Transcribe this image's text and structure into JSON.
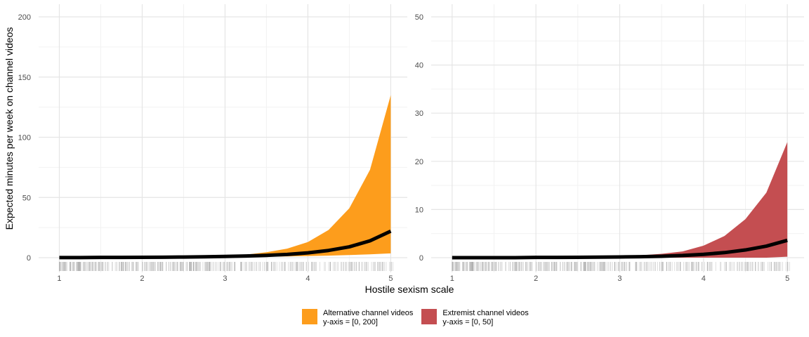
{
  "ylabel": "Expected minutes per week on channel videos",
  "xlabel": "Hostile sexism scale",
  "legend": [
    {
      "line1": "Alternative channel videos",
      "line2": "y-axis = [0, 200]",
      "color": "#FD9D1C"
    },
    {
      "line1": "Extremist channel videos",
      "line2": "y-axis = [0, 50]",
      "color": "#C44E51"
    }
  ],
  "chart_data": [
    {
      "type": "area",
      "xlabel": "Hostile sexism scale",
      "ylabel": "Expected minutes per week on channel videos",
      "xlim": [
        0.75,
        5.2
      ],
      "ylim": [
        0,
        200
      ],
      "x_ticks": [
        1,
        2,
        3,
        4,
        5
      ],
      "y_ticks": [
        0,
        50,
        100,
        150,
        200
      ],
      "grid": true,
      "band_color": "#FD9D1C",
      "x": [
        1,
        1.25,
        1.5,
        1.75,
        2,
        2.25,
        2.5,
        2.75,
        3,
        3.25,
        3.5,
        3.75,
        4,
        4.25,
        4.5,
        4.75,
        5
      ],
      "series": [
        {
          "role": "estimate",
          "values": [
            0.1,
            0.1,
            0.2,
            0.2,
            0.3,
            0.4,
            0.5,
            0.7,
            1.0,
            1.4,
            1.9,
            2.7,
            4.0,
            6.0,
            9.0,
            14.0,
            22.0
          ]
        },
        {
          "role": "upper",
          "values": [
            0.2,
            0.3,
            0.3,
            0.4,
            0.5,
            0.6,
            0.8,
            1.1,
            1.5,
            2.5,
            4.5,
            7.5,
            13.0,
            23.0,
            41.0,
            73.0,
            135.0
          ]
        },
        {
          "role": "lower",
          "values": [
            0.0,
            0.0,
            0.0,
            0.0,
            0.1,
            0.1,
            0.2,
            0.3,
            0.4,
            0.6,
            0.8,
            1.0,
            1.3,
            1.7,
            2.2,
            2.8,
            3.6
          ]
        }
      ]
    },
    {
      "type": "area",
      "xlabel": "Hostile sexism scale",
      "ylabel": "Expected minutes per week on channel videos",
      "xlim": [
        0.75,
        5.2
      ],
      "ylim": [
        0,
        50
      ],
      "x_ticks": [
        1,
        2,
        3,
        4,
        5
      ],
      "y_ticks": [
        0,
        10,
        20,
        30,
        40,
        50
      ],
      "grid": true,
      "band_color": "#C44E51",
      "x": [
        1,
        1.25,
        1.5,
        1.75,
        2,
        2.25,
        2.5,
        2.75,
        3,
        3.25,
        3.5,
        3.75,
        4,
        4.25,
        4.5,
        4.75,
        5
      ],
      "series": [
        {
          "role": "estimate",
          "values": [
            0.0,
            0.0,
            0.0,
            0.0,
            0.05,
            0.06,
            0.08,
            0.11,
            0.15,
            0.2,
            0.3,
            0.45,
            0.7,
            1.05,
            1.6,
            2.4,
            3.6
          ]
        },
        {
          "role": "upper",
          "values": [
            0.05,
            0.06,
            0.08,
            0.1,
            0.12,
            0.15,
            0.2,
            0.25,
            0.35,
            0.5,
            0.8,
            1.3,
            2.5,
            4.5,
            8.0,
            13.5,
            24.0
          ]
        },
        {
          "role": "lower",
          "values": [
            0,
            0,
            0,
            0,
            0,
            0,
            0,
            0,
            0,
            0,
            0,
            0,
            0,
            0,
            0,
            0,
            0.2
          ]
        }
      ]
    }
  ]
}
